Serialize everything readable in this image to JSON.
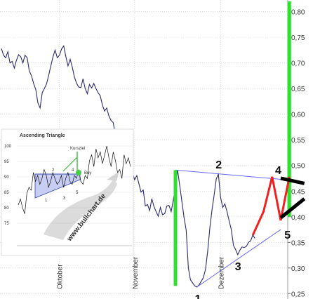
{
  "chart_data": {
    "type": "line",
    "title": "",
    "xlabel": "",
    "ylabel": "",
    "y_axis_side": "right",
    "ylim": [
      0.245,
      0.82
    ],
    "y_ticks": [
      {
        "value": 0.8,
        "label": "0,80"
      },
      {
        "value": 0.75,
        "label": "0,75"
      },
      {
        "value": 0.7,
        "label": "0,70"
      },
      {
        "value": 0.65,
        "label": "0,65"
      },
      {
        "value": 0.6,
        "label": "0,60"
      },
      {
        "value": 0.55,
        "label": "0,55"
      },
      {
        "value": 0.5,
        "label": "0,50"
      },
      {
        "value": 0.45,
        "label": "0,45"
      },
      {
        "value": 0.4,
        "label": "0,40"
      },
      {
        "value": 0.35,
        "label": "0,35"
      },
      {
        "value": 0.3,
        "label": "0,30"
      },
      {
        "value": 0.25,
        "label": "0,25"
      }
    ],
    "x_ticks": [
      {
        "index": 27,
        "label": "Oktober"
      },
      {
        "index": 62,
        "label": "November"
      },
      {
        "index": 102,
        "label": "Dezember"
      }
    ],
    "price": [
      0.728,
      0.715,
      0.71,
      0.722,
      0.7,
      0.703,
      0.69,
      0.705,
      0.716,
      0.712,
      0.7,
      0.715,
      0.71,
      0.684,
      0.675,
      0.66,
      0.648,
      0.622,
      0.612,
      0.642,
      0.65,
      0.659,
      0.676,
      0.694,
      0.712,
      0.725,
      0.71,
      0.715,
      0.727,
      0.733,
      0.712,
      0.694,
      0.707,
      0.692,
      0.672,
      0.66,
      0.653,
      0.652,
      0.669,
      0.65,
      0.64,
      0.658,
      0.651,
      0.66,
      0.65,
      0.642,
      0.636,
      0.618,
      0.606,
      0.612,
      0.597,
      0.588,
      0.584,
      0.561,
      0.569,
      0.543,
      0.536,
      0.542,
      0.533,
      0.517,
      0.501,
      0.486,
      0.472,
      0.48,
      0.464,
      0.448,
      0.452,
      0.421,
      0.424,
      0.412,
      0.435,
      0.42,
      0.41,
      0.401,
      0.418,
      0.404,
      0.406,
      0.421,
      0.422,
      0.41,
      0.432,
      0.458,
      0.491,
      0.461,
      0.43,
      0.399,
      0.374,
      0.3,
      0.277,
      0.271,
      0.265,
      0.263,
      0.267,
      0.274,
      0.281,
      0.298,
      0.332,
      0.378,
      0.412,
      0.442,
      0.474,
      0.483,
      0.438,
      0.418,
      0.425,
      0.41,
      0.392,
      0.375,
      0.344,
      0.336,
      0.326,
      0.335,
      0.341,
      0.34,
      0.342,
      0.35,
      0.353,
      0.364,
      0.358
    ],
    "annotations": [
      {
        "label": "1",
        "index": 91,
        "value": 0.263
      },
      {
        "label": "2",
        "index": 101,
        "value": 0.483
      },
      {
        "label": "3",
        "index": 110,
        "value": 0.326
      },
      {
        "label": "4",
        "index": 130,
        "value": 0.478
      },
      {
        "label": "5",
        "index": 133,
        "value": 0.393
      }
    ],
    "trendlines": [
      {
        "name": "resistance",
        "color": "#6666ff",
        "from": {
          "index": 81,
          "value": 0.491
        },
        "to": {
          "index": 130,
          "value": 0.473
        }
      },
      {
        "name": "support",
        "color": "#6666ff",
        "from": {
          "index": 91,
          "value": 0.263
        },
        "to": {
          "index": 130,
          "value": 0.375
        }
      }
    ],
    "projection": {
      "color": "#ee2222",
      "points": [
        {
          "index": 117,
          "value": 0.364
        },
        {
          "index": 122,
          "value": 0.41
        },
        {
          "index": 126,
          "value": 0.478
        },
        {
          "index": 130,
          "value": 0.393
        },
        {
          "index": 134,
          "value": 0.478
        }
      ]
    },
    "green_bars": [
      {
        "index": 81,
        "from": 0.491,
        "to": 0.265
      },
      {
        "index": 134,
        "from": 0.4,
        "to": 0.82
      }
    ],
    "black_lines": [
      {
        "from": {
          "index": 130,
          "value": 0.475
        },
        "to": {
          "index": 141,
          "value": 0.465
        }
      },
      {
        "from": {
          "index": 130,
          "value": 0.398
        },
        "to": {
          "index": 141,
          "value": 0.435
        }
      }
    ],
    "colors": {
      "price": "#2a2a6e",
      "trend": "#6666ff",
      "projection": "#ee2222",
      "green": "#33dd33",
      "annotation_line": "#111111",
      "grid": "#c8c8c8"
    }
  },
  "inset": {
    "title": "Ascending Triangle",
    "kursziel_label": "Kursziel",
    "buy_label": "Buy",
    "watermark": "www.bullchart.de",
    "y_ticks": [
      "100",
      "95",
      "90",
      "85",
      "80",
      "75"
    ],
    "point_labels": [
      "1",
      "2",
      "3",
      "4",
      "5"
    ],
    "price": [
      80,
      82,
      79,
      77,
      84,
      86,
      85,
      91,
      88,
      90,
      87,
      89,
      92,
      90,
      86,
      88,
      91,
      89,
      87,
      88,
      90,
      86,
      89,
      91,
      88,
      87,
      90,
      89,
      92,
      88,
      87,
      90,
      89,
      95,
      97,
      93,
      99,
      96,
      98,
      94,
      97,
      100,
      96,
      93,
      98,
      95,
      91,
      92,
      89,
      97,
      94,
      96,
      93
    ]
  }
}
